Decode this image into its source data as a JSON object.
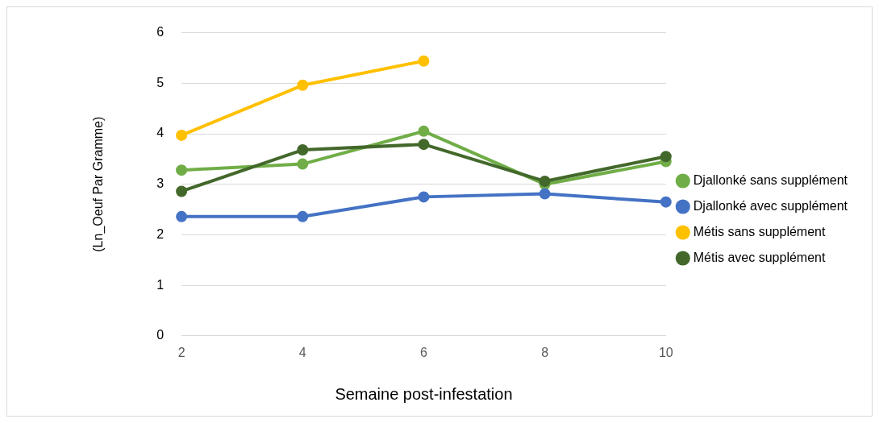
{
  "chart_data": {
    "type": "line",
    "xlabel": "Semaine post-infestation",
    "ylabel": "(Ln_Oeuf Par Gramme)",
    "categories": [
      "2",
      "4",
      "6",
      "8",
      "10"
    ],
    "series": [
      {
        "name": "Djallonké sans supplément",
        "color": "#70ad47",
        "values": [
          3.28,
          3.4,
          4.05,
          3.0,
          3.45
        ]
      },
      {
        "name": "Djallonké avec supplément",
        "color": "#4472c4",
        "values": [
          2.36,
          2.36,
          2.75,
          2.81,
          2.65
        ]
      },
      {
        "name": "Métis sans supplément",
        "color": "#ffc000",
        "values": [
          3.97,
          4.96,
          5.44,
          null,
          null
        ]
      },
      {
        "name": "Métis avec supplément",
        "color": "#43682b",
        "values": [
          2.86,
          3.68,
          3.79,
          3.06,
          3.55
        ]
      }
    ],
    "ylim": [
      0,
      6
    ],
    "yticks": [
      0,
      1,
      2,
      3,
      4,
      5,
      6
    ],
    "grid": "y",
    "legend": "right",
    "marker": "circle",
    "line_style": "solid"
  }
}
